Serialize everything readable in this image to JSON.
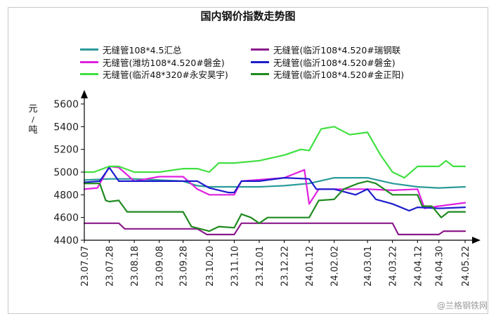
{
  "chart_data": {
    "type": "line",
    "title": "国内钢价指数走势图",
    "ylabel": "元/吨",
    "ylim": [
      4400,
      5600
    ],
    "yticks": [
      4400,
      4600,
      4800,
      5000,
      5200,
      5400,
      5600
    ],
    "xlim": [
      "2023-07-07",
      "2024-05-22"
    ],
    "xtick_labels": [
      "23.07.07",
      "23.07.28",
      "23.08.18",
      "23.09.08",
      "23.09.28",
      "23.10.20",
      "23.11.10",
      "23.12.01",
      "23.12.22",
      "24.01.12",
      "24.02.02",
      "24.03.01",
      "24.03.22",
      "24.04.12",
      "24.04.30",
      "24.05.22"
    ],
    "xtick_dates": [
      "2023-07-07",
      "2023-07-28",
      "2023-08-18",
      "2023-09-08",
      "2023-09-28",
      "2023-10-20",
      "2023-11-10",
      "2023-12-01",
      "2023-12-22",
      "2024-01-12",
      "2024-02-02",
      "2024-03-01",
      "2024-03-22",
      "2024-04-12",
      "2024-04-30",
      "2024-05-22"
    ],
    "legend_position": "top",
    "series": [
      {
        "name": "无缝管108*4.5汇总",
        "color": "#2a9a9a",
        "points": [
          [
            "2023-07-07",
            4930
          ],
          [
            "2023-07-28",
            4940
          ],
          [
            "2023-08-18",
            4940
          ],
          [
            "2023-09-08",
            4930
          ],
          [
            "2023-09-28",
            4920
          ],
          [
            "2023-10-10",
            4880
          ],
          [
            "2023-10-20",
            4870
          ],
          [
            "2023-11-10",
            4870
          ],
          [
            "2023-12-01",
            4870
          ],
          [
            "2023-12-22",
            4880
          ],
          [
            "2024-01-12",
            4900
          ],
          [
            "2024-02-02",
            4950
          ],
          [
            "2024-03-01",
            4950
          ],
          [
            "2024-03-22",
            4900
          ],
          [
            "2024-04-12",
            4870
          ],
          [
            "2024-04-30",
            4860
          ],
          [
            "2024-05-22",
            4870
          ]
        ]
      },
      {
        "name": "无缝管(临沂108*4.520#瑞钢联",
        "color": "#8b1a8b",
        "points": [
          [
            "2023-07-07",
            4550
          ],
          [
            "2023-07-28",
            4550
          ],
          [
            "2023-08-05",
            4550
          ],
          [
            "2023-08-10",
            4500
          ],
          [
            "2023-08-18",
            4500
          ],
          [
            "2023-09-28",
            4500
          ],
          [
            "2023-10-10",
            4500
          ],
          [
            "2023-10-18",
            4450
          ],
          [
            "2023-11-10",
            4450
          ],
          [
            "2023-11-16",
            4550
          ],
          [
            "2023-12-01",
            4550
          ],
          [
            "2024-03-01",
            4550
          ],
          [
            "2024-03-22",
            4550
          ],
          [
            "2024-03-27",
            4450
          ],
          [
            "2024-04-30",
            4450
          ],
          [
            "2024-05-04",
            4480
          ],
          [
            "2024-05-22",
            4480
          ]
        ]
      },
      {
        "name": "无缝管(潍坊108*4.520#磐金)",
        "color": "#e020e0",
        "points": [
          [
            "2023-07-07",
            4850
          ],
          [
            "2023-07-18",
            4860
          ],
          [
            "2023-07-28",
            5050
          ],
          [
            "2023-08-05",
            5040
          ],
          [
            "2023-08-18",
            4920
          ],
          [
            "2023-09-08",
            4960
          ],
          [
            "2023-09-28",
            4960
          ],
          [
            "2023-10-10",
            4850
          ],
          [
            "2023-10-20",
            4800
          ],
          [
            "2023-11-10",
            4800
          ],
          [
            "2023-11-16",
            4920
          ],
          [
            "2023-12-22",
            4950
          ],
          [
            "2024-01-08",
            5020
          ],
          [
            "2024-01-12",
            4720
          ],
          [
            "2024-01-20",
            4850
          ],
          [
            "2024-02-02",
            4850
          ],
          [
            "2024-03-01",
            4850
          ],
          [
            "2024-03-22",
            4840
          ],
          [
            "2024-04-12",
            4850
          ],
          [
            "2024-04-18",
            4680
          ],
          [
            "2024-04-30",
            4700
          ],
          [
            "2024-05-22",
            4730
          ]
        ]
      },
      {
        "name": "无缝管(临沂108*4.520#磐金)",
        "color": "#1c1ccc",
        "points": [
          [
            "2023-07-07",
            4910
          ],
          [
            "2023-07-20",
            4920
          ],
          [
            "2023-07-28",
            5040
          ],
          [
            "2023-08-05",
            4920
          ],
          [
            "2023-09-08",
            4920
          ],
          [
            "2023-09-28",
            4920
          ],
          [
            "2023-10-10",
            4920
          ],
          [
            "2023-10-20",
            4860
          ],
          [
            "2023-11-05",
            4820
          ],
          [
            "2023-11-10",
            4820
          ],
          [
            "2023-11-16",
            4920
          ],
          [
            "2023-12-01",
            4920
          ],
          [
            "2023-12-22",
            4950
          ],
          [
            "2024-01-12",
            4940
          ],
          [
            "2024-01-18",
            4850
          ],
          [
            "2024-02-02",
            4850
          ],
          [
            "2024-02-20",
            4800
          ],
          [
            "2024-03-01",
            4850
          ],
          [
            "2024-03-08",
            4760
          ],
          [
            "2024-03-22",
            4720
          ],
          [
            "2024-04-05",
            4660
          ],
          [
            "2024-04-12",
            4690
          ],
          [
            "2024-04-30",
            4680
          ],
          [
            "2024-05-22",
            4690
          ]
        ]
      },
      {
        "name": "无缝管(临沂48*320#永安昊宇)",
        "color": "#40e040",
        "points": [
          [
            "2023-07-07",
            5000
          ],
          [
            "2023-07-15",
            5000
          ],
          [
            "2023-07-28",
            5050
          ],
          [
            "2023-08-05",
            5050
          ],
          [
            "2023-08-18",
            5000
          ],
          [
            "2023-09-08",
            5000
          ],
          [
            "2023-09-28",
            5030
          ],
          [
            "2023-10-10",
            5030
          ],
          [
            "2023-10-20",
            5000
          ],
          [
            "2023-10-28",
            5080
          ],
          [
            "2023-11-10",
            5080
          ],
          [
            "2023-12-01",
            5100
          ],
          [
            "2023-12-22",
            5150
          ],
          [
            "2024-01-05",
            5200
          ],
          [
            "2024-01-12",
            5190
          ],
          [
            "2024-01-22",
            5380
          ],
          [
            "2024-02-02",
            5400
          ],
          [
            "2024-02-15",
            5330
          ],
          [
            "2024-03-01",
            5350
          ],
          [
            "2024-03-12",
            5150
          ],
          [
            "2024-03-22",
            5000
          ],
          [
            "2024-04-01",
            4950
          ],
          [
            "2024-04-12",
            5050
          ],
          [
            "2024-04-30",
            5050
          ],
          [
            "2024-05-06",
            5100
          ],
          [
            "2024-05-12",
            5050
          ],
          [
            "2024-05-22",
            5050
          ]
        ]
      },
      {
        "name": "无缝管(临沂108*4.520#金正阳)",
        "color": "#1f8a1f",
        "points": [
          [
            "2023-07-07",
            4900
          ],
          [
            "2023-07-20",
            4900
          ],
          [
            "2023-07-25",
            4750
          ],
          [
            "2023-07-28",
            4740
          ],
          [
            "2023-08-05",
            4750
          ],
          [
            "2023-08-12",
            4650
          ],
          [
            "2023-08-18",
            4650
          ],
          [
            "2023-09-08",
            4650
          ],
          [
            "2023-09-28",
            4650
          ],
          [
            "2023-10-05",
            4520
          ],
          [
            "2023-10-20",
            4480
          ],
          [
            "2023-10-28",
            4520
          ],
          [
            "2023-11-10",
            4510
          ],
          [
            "2023-11-16",
            4630
          ],
          [
            "2023-11-24",
            4600
          ],
          [
            "2023-12-01",
            4550
          ],
          [
            "2023-12-08",
            4600
          ],
          [
            "2023-12-22",
            4600
          ],
          [
            "2024-01-12",
            4600
          ],
          [
            "2024-01-20",
            4750
          ],
          [
            "2024-02-02",
            4760
          ],
          [
            "2024-02-10",
            4850
          ],
          [
            "2024-02-22",
            4900
          ],
          [
            "2024-03-01",
            4920
          ],
          [
            "2024-03-08",
            4900
          ],
          [
            "2024-03-22",
            4800
          ],
          [
            "2024-04-12",
            4800
          ],
          [
            "2024-04-16",
            4700
          ],
          [
            "2024-04-24",
            4700
          ],
          [
            "2024-05-02",
            4600
          ],
          [
            "2024-05-08",
            4650
          ],
          [
            "2024-05-22",
            4650
          ]
        ]
      }
    ]
  },
  "watermark": "@兰格钢铁网"
}
